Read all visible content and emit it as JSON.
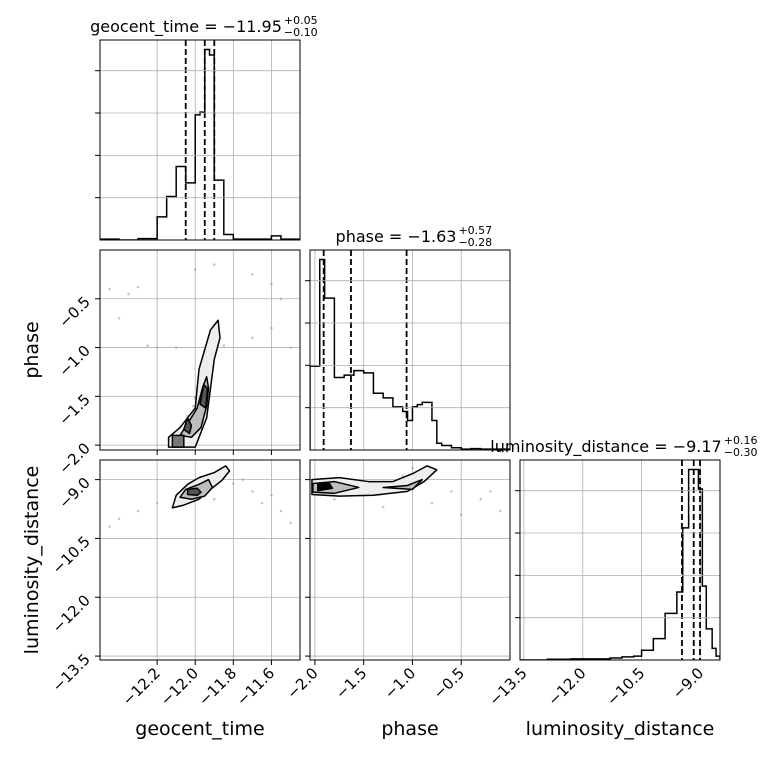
{
  "chart_data": {
    "type": "corner",
    "parameters": [
      "geocent_time",
      "phase",
      "luminosity_distance"
    ],
    "axis_labels": {
      "geocent_time": "geocent_time",
      "phase": "phase",
      "luminosity_distance": "luminosity_distance"
    },
    "ranges": {
      "geocent_time": [
        -12.5,
        -11.45
      ],
      "phase": [
        -2.05,
        0.0
      ],
      "luminosity_distance": [
        -13.6,
        -8.5
      ]
    },
    "ticks": {
      "geocent_time": [
        {
          "value": -12.2,
          "label": "−12.2"
        },
        {
          "value": -12.0,
          "label": "−12.0"
        },
        {
          "value": -11.8,
          "label": "−11.8"
        },
        {
          "value": -11.6,
          "label": "−11.6"
        }
      ],
      "phase": [
        {
          "value": -2.0,
          "label": "−2.0"
        },
        {
          "value": -1.5,
          "label": "−1.5"
        },
        {
          "value": -1.0,
          "label": "−1.0"
        },
        {
          "value": -0.5,
          "label": "−0.5"
        }
      ],
      "luminosity_distance": [
        {
          "value": -13.5,
          "label": "−13.5"
        },
        {
          "value": -12.0,
          "label": "−12.0"
        },
        {
          "value": -10.5,
          "label": "−10.5"
        },
        {
          "value": -9.0,
          "label": "−9.0"
        }
      ]
    },
    "titles": [
      {
        "param": "geocent_time",
        "main": "geocent_time = −11.95",
        "sup": "+0.05",
        "sub": "−0.10"
      },
      {
        "param": "phase",
        "main": "phase = −1.63",
        "sup": "+0.57",
        "sub": "−0.28"
      },
      {
        "param": "luminosity_distance",
        "main": "luminosity_distance = −9.17",
        "sup": "+0.16",
        "sub": "−0.30"
      }
    ],
    "quantiles": {
      "geocent_time": [
        -12.05,
        -11.95,
        -11.9
      ],
      "phase": [
        -1.91,
        -1.63,
        -1.06
      ],
      "luminosity_distance": [
        -9.47,
        -9.17,
        -9.01
      ]
    },
    "histograms": {
      "geocent_time": {
        "edges": [
          -12.5,
          -12.4,
          -12.3,
          -12.2,
          -12.15,
          -12.1,
          -12.05,
          -12.0,
          -11.975,
          -11.95,
          -11.925,
          -11.9,
          -11.85,
          -11.8,
          -11.7,
          -11.6,
          -11.55,
          -11.5,
          -11.45
        ],
        "counts": [
          0.3,
          0.0,
          0.5,
          8.5,
          16.0,
          27.0,
          21.0,
          46.0,
          47.0,
          70.0,
          68.0,
          22.0,
          2.0,
          0.3,
          0.3,
          1.5,
          0.3,
          0.3
        ]
      },
      "phase": {
        "edges": [
          -2.05,
          -1.95,
          -1.9,
          -1.8,
          -1.7,
          -1.6,
          -1.5,
          -1.4,
          -1.3,
          -1.2,
          -1.1,
          -1.05,
          -1.0,
          -0.95,
          -0.9,
          -0.8,
          -0.75,
          -0.7,
          -0.6,
          -0.5,
          -0.4,
          -0.3,
          -0.2,
          -0.1,
          0.0
        ],
        "counts": [
          18.5,
          42.0,
          33.5,
          16.0,
          16.5,
          17.5,
          17.0,
          12.5,
          11.5,
          9.5,
          8.5,
          6.5,
          9.5,
          10.0,
          10.5,
          6.5,
          1.5,
          1.0,
          0.5,
          0.2,
          0.3,
          0.2,
          0.2,
          0.2
        ]
      },
      "luminosity_distance": {
        "edges": [
          -13.6,
          -12.9,
          -12.3,
          -11.7,
          -11.3,
          -11.0,
          -10.7,
          -10.5,
          -10.2,
          -9.9,
          -9.6,
          -9.45,
          -9.3,
          -9.15,
          -9.05,
          -8.95,
          -8.85,
          -8.7,
          -8.6,
          -8.5
        ],
        "counts": [
          0.0,
          0.2,
          0.3,
          0.3,
          0.5,
          0.8,
          1.0,
          2.5,
          5.5,
          12.0,
          17.5,
          34.0,
          49.0,
          49.0,
          44.0,
          19.0,
          8.0,
          3.0,
          1.0
        ]
      }
    },
    "pairs": [
      {
        "x": "geocent_time",
        "y": "phase",
        "samples": [
          [
            -11.93,
            -0.9
          ],
          [
            -11.95,
            -1.05
          ],
          [
            -11.97,
            -1.25
          ],
          [
            -11.99,
            -1.45
          ],
          [
            -12.01,
            -1.6
          ],
          [
            -12.03,
            -1.75
          ],
          [
            -12.06,
            -1.85
          ],
          [
            -12.1,
            -1.92
          ],
          [
            -11.9,
            -0.95
          ],
          [
            -11.92,
            -1.1
          ],
          [
            -11.96,
            -1.35
          ],
          [
            -12.0,
            -1.52
          ],
          [
            -12.04,
            -1.7
          ],
          [
            -12.08,
            -1.95
          ],
          [
            -12.2,
            -1.0
          ],
          [
            -12.1,
            -1.0
          ],
          [
            -12.25,
            -0.98
          ],
          [
            -11.85,
            -0.98
          ],
          [
            -12.35,
            -0.45
          ],
          [
            -12.3,
            -0.38
          ],
          [
            -12.0,
            -0.2
          ],
          [
            -11.9,
            -0.15
          ],
          [
            -11.7,
            -0.25
          ],
          [
            -11.6,
            -0.35
          ],
          [
            -11.55,
            -0.5
          ],
          [
            -11.6,
            -0.8
          ],
          [
            -11.7,
            -0.9
          ],
          [
            -11.5,
            -1.0
          ],
          [
            -12.45,
            -0.4
          ],
          [
            -12.4,
            -0.7
          ]
        ],
        "contours": [
          {
            "level": "outer",
            "fill": "#eeeeee",
            "path": [
              [
                -12.14,
                -2.02
              ],
              [
                -12.14,
                -1.92
              ],
              [
                -12.08,
                -1.82
              ],
              [
                -12.0,
                -1.62
              ],
              [
                -11.99,
                -1.42
              ],
              [
                -11.98,
                -1.22
              ],
              [
                -11.95,
                -1.02
              ],
              [
                -11.92,
                -0.82
              ],
              [
                -11.88,
                -0.72
              ],
              [
                -11.87,
                -0.9
              ],
              [
                -11.9,
                -1.12
              ],
              [
                -11.92,
                -1.42
              ],
              [
                -11.94,
                -1.72
              ],
              [
                -11.98,
                -1.92
              ],
              [
                -12.0,
                -2.02
              ]
            ]
          },
          {
            "level": "middle",
            "fill": "#bdbdbd",
            "path": [
              [
                -12.08,
                -1.9
              ],
              [
                -12.04,
                -1.78
              ],
              [
                -11.99,
                -1.62
              ],
              [
                -11.96,
                -1.4
              ],
              [
                -11.94,
                -1.3
              ],
              [
                -11.93,
                -1.42
              ],
              [
                -11.94,
                -1.6
              ],
              [
                -11.97,
                -1.82
              ],
              [
                -12.02,
                -1.92
              ]
            ]
          },
          {
            "level": "inner",
            "fill": "#555555",
            "path": [
              [
                -11.975,
                -1.58
              ],
              [
                -11.955,
                -1.38
              ],
              [
                -11.935,
                -1.42
              ],
              [
                -11.945,
                -1.62
              ]
            ]
          },
          {
            "level": "inner",
            "fill": "#555555",
            "path": [
              [
                -12.06,
                -1.84
              ],
              [
                -12.04,
                -1.72
              ],
              [
                -12.02,
                -1.8
              ],
              [
                -12.03,
                -1.88
              ]
            ]
          },
          {
            "level": "inner",
            "fill": "#777777",
            "path": [
              [
                -12.12,
                -2.02
              ],
              [
                -12.12,
                -1.9
              ],
              [
                -12.06,
                -1.9
              ],
              [
                -12.06,
                -2.02
              ]
            ]
          }
        ]
      },
      {
        "x": "geocent_time",
        "y": "luminosity_distance",
        "samples": [
          [
            -11.95,
            -9.0
          ],
          [
            -12.0,
            -9.2
          ],
          [
            -12.05,
            -9.3
          ],
          [
            -11.9,
            -8.95
          ],
          [
            -11.85,
            -8.8
          ],
          [
            -12.1,
            -9.5
          ],
          [
            -12.2,
            -9.6
          ],
          [
            -12.3,
            -9.8
          ],
          [
            -12.4,
            -10.0
          ],
          [
            -12.45,
            -10.2
          ],
          [
            -11.8,
            -9.1
          ],
          [
            -11.7,
            -9.3
          ],
          [
            -11.65,
            -9.6
          ],
          [
            -11.6,
            -9.4
          ],
          [
            -11.55,
            -9.8
          ],
          [
            -11.5,
            -10.1
          ],
          [
            -11.75,
            -9.0
          ],
          [
            -11.9,
            -9.5
          ],
          [
            -12.0,
            -9.4
          ]
        ],
        "contours": [
          {
            "level": "outer",
            "fill": "#eeeeee",
            "path": [
              [
                -12.12,
                -9.72
              ],
              [
                -12.1,
                -9.4
              ],
              [
                -12.04,
                -9.12
              ],
              [
                -11.98,
                -8.95
              ],
              [
                -11.9,
                -8.82
              ],
              [
                -11.84,
                -8.65
              ],
              [
                -11.82,
                -8.78
              ],
              [
                -11.86,
                -9.02
              ],
              [
                -11.92,
                -9.25
              ],
              [
                -11.98,
                -9.5
              ],
              [
                -12.06,
                -9.65
              ]
            ]
          },
          {
            "level": "middle",
            "fill": "#bdbdbd",
            "path": [
              [
                -12.08,
                -9.45
              ],
              [
                -12.05,
                -9.25
              ],
              [
                -11.98,
                -9.12
              ],
              [
                -11.93,
                -9.0
              ],
              [
                -11.91,
                -9.2
              ],
              [
                -11.95,
                -9.42
              ],
              [
                -12.02,
                -9.5
              ]
            ]
          },
          {
            "level": "inner",
            "fill": "#555555",
            "path": [
              [
                -12.04,
                -9.38
              ],
              [
                -12.04,
                -9.25
              ],
              [
                -11.99,
                -9.22
              ],
              [
                -11.97,
                -9.32
              ],
              [
                -11.99,
                -9.4
              ]
            ]
          }
        ]
      },
      {
        "x": "phase",
        "y": "luminosity_distance",
        "samples": [
          [
            -1.95,
            -9.2
          ],
          [
            -1.6,
            -9.3
          ],
          [
            -1.2,
            -9.25
          ],
          [
            -1.0,
            -9.1
          ],
          [
            -0.9,
            -9.0
          ],
          [
            -0.6,
            -9.3
          ],
          [
            -0.3,
            -9.5
          ],
          [
            -0.1,
            -9.8
          ],
          [
            -1.8,
            -9.5
          ],
          [
            -1.3,
            -9.7
          ],
          [
            -0.8,
            -9.6
          ],
          [
            -0.5,
            -9.9
          ],
          [
            -1.0,
            -8.7
          ],
          [
            -1.1,
            -8.9
          ],
          [
            -1.5,
            -9.4
          ],
          [
            -0.2,
            -9.3
          ]
        ],
        "contours": [
          {
            "level": "outer",
            "fill": "#eeeeee",
            "path": [
              [
                -2.03,
                -9.0
              ],
              [
                -1.75,
                -8.95
              ],
              [
                -1.45,
                -9.05
              ],
              [
                -1.2,
                -9.05
              ],
              [
                -1.0,
                -8.85
              ],
              [
                -0.85,
                -8.65
              ],
              [
                -0.75,
                -8.75
              ],
              [
                -0.88,
                -9.05
              ],
              [
                -1.05,
                -9.3
              ],
              [
                -1.4,
                -9.4
              ],
              [
                -1.75,
                -9.42
              ],
              [
                -2.03,
                -9.38
              ]
            ]
          },
          {
            "level": "middle",
            "fill": "#bdbdbd",
            "path": [
              [
                -2.02,
                -9.1
              ],
              [
                -1.8,
                -9.05
              ],
              [
                -1.55,
                -9.2
              ],
              [
                -1.8,
                -9.35
              ],
              [
                -2.02,
                -9.32
              ]
            ]
          },
          {
            "level": "middle",
            "fill": "#bdbdbd",
            "path": [
              [
                -1.3,
                -9.2
              ],
              [
                -1.05,
                -9.15
              ],
              [
                -0.9,
                -9.0
              ],
              [
                -1.0,
                -9.25
              ]
            ]
          },
          {
            "level": "inner",
            "fill": "#000000",
            "path": [
              [
                -1.97,
                -9.12
              ],
              [
                -1.85,
                -9.1
              ],
              [
                -1.82,
                -9.22
              ],
              [
                -1.97,
                -9.28
              ]
            ]
          }
        ]
      }
    ],
    "colors": {
      "line": "#000000",
      "grid": "#b0b0b0",
      "points": "#999999"
    },
    "grid": true,
    "legend": "none"
  }
}
